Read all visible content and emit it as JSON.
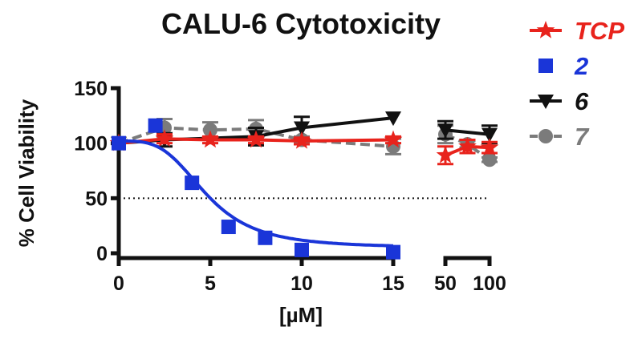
{
  "chart_data": {
    "type": "line",
    "title": "CALU-6 Cytotoxicity",
    "xlabel": "[µM]",
    "ylabel": "% Cell Viability",
    "x_segments": [
      {
        "range": [
          0,
          15
        ],
        "ticks": [
          0,
          5,
          10,
          15
        ]
      },
      {
        "range": [
          50,
          100
        ],
        "ticks": [
          50,
          100
        ]
      }
    ],
    "ylim": [
      0,
      150
    ],
    "yticks": [
      0,
      50,
      100,
      150
    ],
    "reference_line": {
      "y": 50,
      "style": "dotted"
    },
    "grid": false,
    "legend_position": "right",
    "series": [
      {
        "name": "TCP",
        "color": "#e8231c",
        "marker": "star",
        "line": "solid",
        "points": [
          {
            "x": 0,
            "y": 100
          },
          {
            "x": 2.5,
            "y": 104,
            "err": 4
          },
          {
            "x": 5,
            "y": 103,
            "err": 3
          },
          {
            "x": 7.5,
            "y": 103,
            "err": 3
          },
          {
            "x": 10,
            "y": 102,
            "err": 3
          },
          {
            "x": 15,
            "y": 103,
            "err": 3
          },
          {
            "x": 50,
            "y": 89,
            "err": 8
          },
          {
            "x": 75,
            "y": 97,
            "err": 6
          },
          {
            "x": 100,
            "y": 96,
            "err": 5
          }
        ]
      },
      {
        "name": "2",
        "color": "#1a35d8",
        "marker": "square",
        "line": "fit",
        "points": [
          {
            "x": 0,
            "y": 100
          },
          {
            "x": 2,
            "y": 116
          },
          {
            "x": 4,
            "y": 64
          },
          {
            "x": 6,
            "y": 24
          },
          {
            "x": 8,
            "y": 14
          },
          {
            "x": 10,
            "y": 3
          },
          {
            "x": 15,
            "y": 1
          }
        ],
        "fit": {
          "top": 102,
          "bottom": 5,
          "ic50": 4.8,
          "hill": 3.5
        }
      },
      {
        "name": "6",
        "color": "#111111",
        "marker": "triangle-down",
        "line": "solid",
        "points": [
          {
            "x": 0,
            "y": 100
          },
          {
            "x": 2.5,
            "y": 103,
            "err": 6
          },
          {
            "x": 7.5,
            "y": 106,
            "err": 8
          },
          {
            "x": 10,
            "y": 114,
            "err": 10
          },
          {
            "x": 15,
            "y": 123,
            "err": 0
          },
          {
            "x": 50,
            "y": 112,
            "err": 8
          },
          {
            "x": 100,
            "y": 108,
            "err": 8
          }
        ]
      },
      {
        "name": "7",
        "color": "#7b7b7b",
        "marker": "circle",
        "line": "dashed",
        "points": [
          {
            "x": 0,
            "y": 100
          },
          {
            "x": 2.5,
            "y": 114,
            "err": 8
          },
          {
            "x": 5,
            "y": 112,
            "err": 7
          },
          {
            "x": 7.5,
            "y": 113,
            "err": 8
          },
          {
            "x": 10,
            "y": 103,
            "err": 3
          },
          {
            "x": 15,
            "y": 97,
            "err": 7
          },
          {
            "x": 50,
            "y": 108,
            "err": 8
          },
          {
            "x": 75,
            "y": 99,
            "err": 3
          },
          {
            "x": 100,
            "y": 85,
            "err": 2
          }
        ]
      }
    ]
  }
}
